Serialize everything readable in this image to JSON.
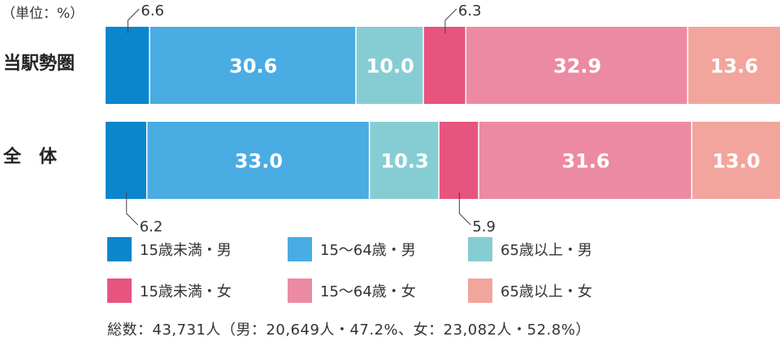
{
  "unit_label": "（単位：%）",
  "row_labels": [
    "当駅勢圏",
    "全　体"
  ],
  "total_note": "総数：43,731人（男：20,649人・47.2%、女：23,082人・52.8%）",
  "chart_data": {
    "type": "bar",
    "orientation": "horizontal",
    "stacked": true,
    "stack_mode": "percent",
    "categories": [
      "当駅勢圏",
      "全　体"
    ],
    "series": [
      {
        "name": "15歳未満・男",
        "color": "#0a86cc",
        "values": [
          6.6,
          6.2
        ],
        "labels": [
          "6.6",
          "6.2"
        ]
      },
      {
        "name": "15〜64歳・男",
        "color": "#49ace3",
        "values": [
          30.6,
          33.0
        ],
        "labels": [
          "30.6",
          "33.0"
        ]
      },
      {
        "name": "65歳以上・男",
        "color": "#86cdd3",
        "values": [
          10.0,
          10.3
        ],
        "labels": [
          "10.0",
          "10.3"
        ]
      },
      {
        "name": "15歳未満・女",
        "color": "#e7547f",
        "values": [
          6.3,
          5.9
        ],
        "labels": [
          "6.3",
          "5.9"
        ]
      },
      {
        "name": "15〜64歳・女",
        "color": "#ed8aa3",
        "values": [
          32.9,
          31.6
        ],
        "labels": [
          "32.9",
          "31.6"
        ]
      },
      {
        "name": "65歳以上・女",
        "color": "#f2a59c",
        "values": [
          13.6,
          13.0
        ],
        "labels": [
          "13.6",
          "13.0"
        ]
      }
    ],
    "legend_position": "bottom",
    "legend_columns": 3,
    "gridlines": false,
    "unit": "%"
  }
}
